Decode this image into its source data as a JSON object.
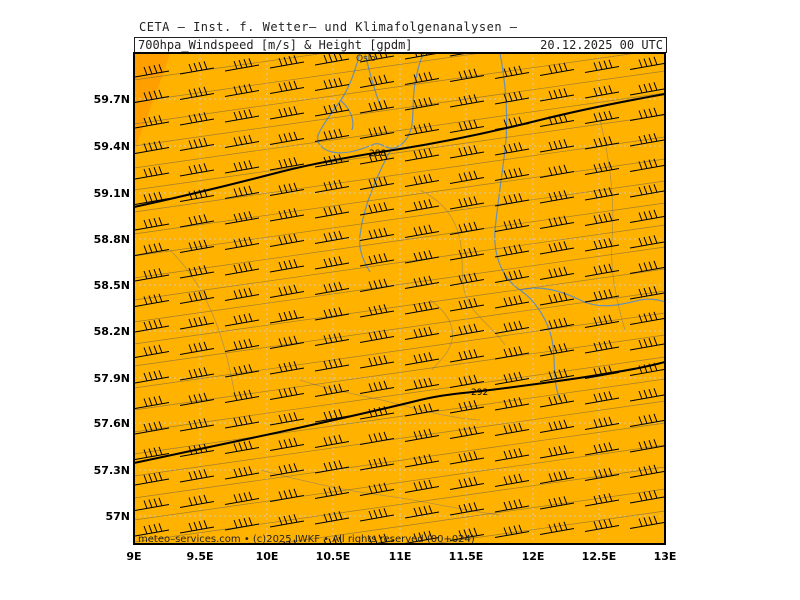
{
  "header": {
    "title": "CETA – Inst. f. Wetter– und Klimafolgenanalysen –",
    "product": "700hpa_Windspeed [m/s] & Height [gpdm]",
    "valid_time": "20.12.2025 00 UTC"
  },
  "map": {
    "place_label": "Oslo",
    "footer": "meteo–services.com • (c)2025 IWKF • All rights reserved (00+024)",
    "lat_labels": [
      "59.7N",
      "59.4N",
      "59.1N",
      "58.8N",
      "58.5N",
      "58.2N",
      "57.9N",
      "57.6N",
      "57.3N",
      "57N"
    ],
    "lon_labels": [
      "9E",
      "9.5E",
      "10E",
      "10.5E",
      "11E",
      "11.5E",
      "12E",
      "12.5E",
      "13E"
    ],
    "contours": [
      {
        "label": "288"
      },
      {
        "label": "292"
      }
    ],
    "colors": {
      "fill": "#ffb200",
      "fill_dark": "#ff9900",
      "contour": "#000000",
      "wind_barb": "#000000",
      "coastline": "#6a8fb4",
      "grid": "#d0c8b8",
      "isotach": "#555555"
    }
  }
}
